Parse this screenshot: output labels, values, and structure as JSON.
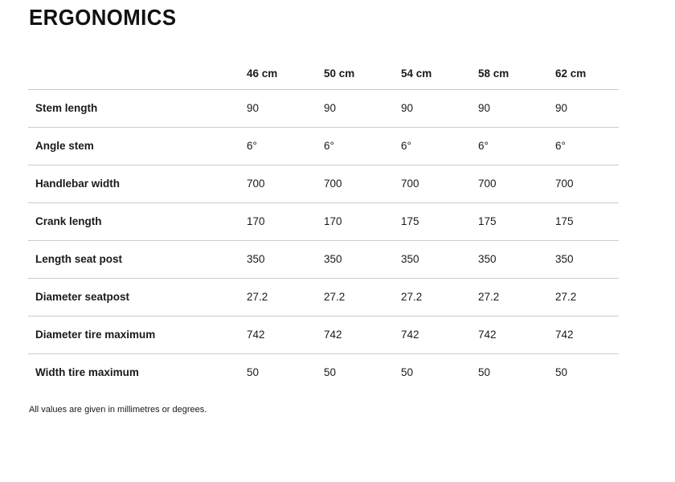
{
  "page": {
    "title": "ERGONOMICS",
    "footnote": "All values are given in millimetres or degrees."
  },
  "colors": {
    "background": "#ffffff",
    "text": "#1a1a1a",
    "divider": "#cccccc"
  },
  "table": {
    "columns": [
      "46 cm",
      "50 cm",
      "54 cm",
      "58 cm",
      "62 cm"
    ],
    "rows": [
      {
        "label": "Stem length",
        "values": [
          "90",
          "90",
          "90",
          "90",
          "90"
        ]
      },
      {
        "label": "Angle stem",
        "values": [
          "6°",
          "6°",
          "6°",
          "6°",
          "6°"
        ]
      },
      {
        "label": "Handlebar width",
        "values": [
          "700",
          "700",
          "700",
          "700",
          "700"
        ]
      },
      {
        "label": "Crank length",
        "values": [
          "170",
          "170",
          "175",
          "175",
          "175"
        ]
      },
      {
        "label": "Length seat post",
        "values": [
          "350",
          "350",
          "350",
          "350",
          "350"
        ]
      },
      {
        "label": "Diameter seatpost",
        "values": [
          "27.2",
          "27.2",
          "27.2",
          "27.2",
          "27.2"
        ]
      },
      {
        "label": "Diameter tire maximum",
        "values": [
          "742",
          "742",
          "742",
          "742",
          "742"
        ]
      },
      {
        "label": "Width tire maximum",
        "values": [
          "50",
          "50",
          "50",
          "50",
          "50"
        ]
      }
    ]
  }
}
